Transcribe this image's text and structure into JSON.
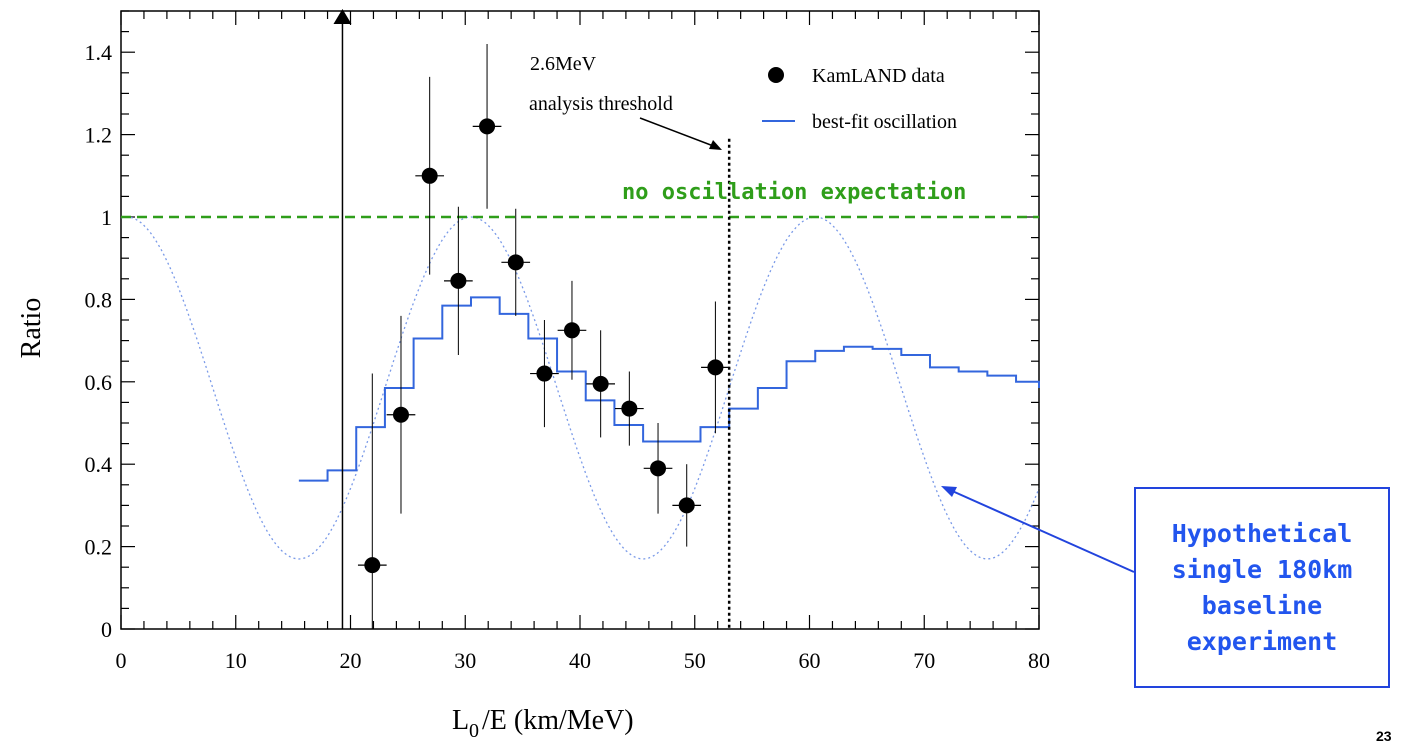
{
  "chart_data": {
    "type": "scatter",
    "xlabel": "L0/E (km/MeV)",
    "ylabel": "Ratio",
    "xlim": [
      0,
      80
    ],
    "ylim": [
      0,
      1.5
    ],
    "x_ticks": [
      0,
      10,
      20,
      30,
      40,
      50,
      60,
      70,
      80
    ],
    "y_ticks": [
      0,
      0.2,
      0.4,
      0.6,
      0.8,
      1,
      1.2,
      1.4
    ],
    "y_tick_labels": [
      "0",
      "0.2",
      "0.4",
      "0.6",
      "0.8",
      "1",
      "1.2",
      "1.4"
    ],
    "grid": false,
    "legend_position": "top-right",
    "series": [
      {
        "name": "KamLAND data",
        "kind": "points",
        "color": "#000000",
        "points": [
          {
            "x": 21.9,
            "y": 0.155,
            "yerr_low": 0.155,
            "yerr_high": 0.465
          },
          {
            "x": 24.4,
            "y": 0.52,
            "yerr_low": 0.24,
            "yerr_high": 0.24
          },
          {
            "x": 26.9,
            "y": 1.1,
            "yerr_low": 0.24,
            "yerr_high": 0.24
          },
          {
            "x": 29.4,
            "y": 0.845,
            "yerr_low": 0.18,
            "yerr_high": 0.18
          },
          {
            "x": 31.9,
            "y": 1.22,
            "yerr_low": 0.2,
            "yerr_high": 0.2
          },
          {
            "x": 34.4,
            "y": 0.89,
            "yerr_low": 0.13,
            "yerr_high": 0.13
          },
          {
            "x": 36.9,
            "y": 0.62,
            "yerr_low": 0.13,
            "yerr_high": 0.13
          },
          {
            "x": 39.3,
            "y": 0.725,
            "yerr_low": 0.12,
            "yerr_high": 0.12
          },
          {
            "x": 41.8,
            "y": 0.595,
            "yerr_low": 0.13,
            "yerr_high": 0.13
          },
          {
            "x": 44.3,
            "y": 0.535,
            "yerr_low": 0.09,
            "yerr_high": 0.09
          },
          {
            "x": 46.8,
            "y": 0.39,
            "yerr_low": 0.11,
            "yerr_high": 0.11
          },
          {
            "x": 49.3,
            "y": 0.3,
            "yerr_low": 0.1,
            "yerr_high": 0.1
          },
          {
            "x": 51.8,
            "y": 0.635,
            "yerr_low": 0.16,
            "yerr_high": 0.16
          }
        ]
      },
      {
        "name": "best-fit oscillation",
        "kind": "step",
        "color": "#3366dd",
        "edges": [
          15.5,
          18,
          20.5,
          23,
          25.5,
          28,
          30.5,
          33,
          35.5,
          38,
          40.5,
          43,
          45.5,
          48,
          50.5,
          53,
          55.5,
          58,
          60.5,
          63,
          65.5,
          68,
          70.5,
          73,
          75.5,
          78,
          80
        ],
        "values": [
          0.36,
          0.385,
          0.49,
          0.585,
          0.705,
          0.785,
          0.805,
          0.765,
          0.705,
          0.625,
          0.555,
          0.495,
          0.455,
          0.455,
          0.49,
          0.535,
          0.585,
          0.65,
          0.675,
          0.685,
          0.68,
          0.665,
          0.635,
          0.625,
          0.615,
          0.6,
          0.585
        ]
      },
      {
        "kind": "dotted-curve",
        "color": "#7a9ae8",
        "y_min": 0.17,
        "y_max": 1.0,
        "period": 30,
        "phase_x_at_max": 0.5
      },
      {
        "kind": "hline",
        "y": 1.0,
        "color": "#2f9e1a",
        "label": "no oscillation expectation"
      }
    ],
    "annotations": {
      "threshold_line_x": 53,
      "threshold_label_1": "2.6MeV",
      "threshold_label_2": "analysis threshold",
      "vertical_arrow_x": 19.3
    }
  },
  "labels": {
    "xlabel_main": "L",
    "xlabel_sub": "0",
    "xlabel_rest": "/E (km/MeV)",
    "ylabel": "Ratio",
    "legend_data": "KamLAND data",
    "legend_fit": "best-fit oscillation",
    "threshold_1": "2.6MeV",
    "threshold_2": "analysis threshold",
    "no_osc": "no oscillation expectation"
  },
  "callout": {
    "line1": "Hypothetical",
    "line2": "single 180km",
    "line3": "baseline",
    "line4": "experiment"
  },
  "page_number": "23",
  "colors": {
    "data": "#000000",
    "fit": "#3366dd",
    "hypothetical": "#7a9ae8",
    "no_oscillation": "#2f9e1a",
    "callout": "#2255ee"
  }
}
